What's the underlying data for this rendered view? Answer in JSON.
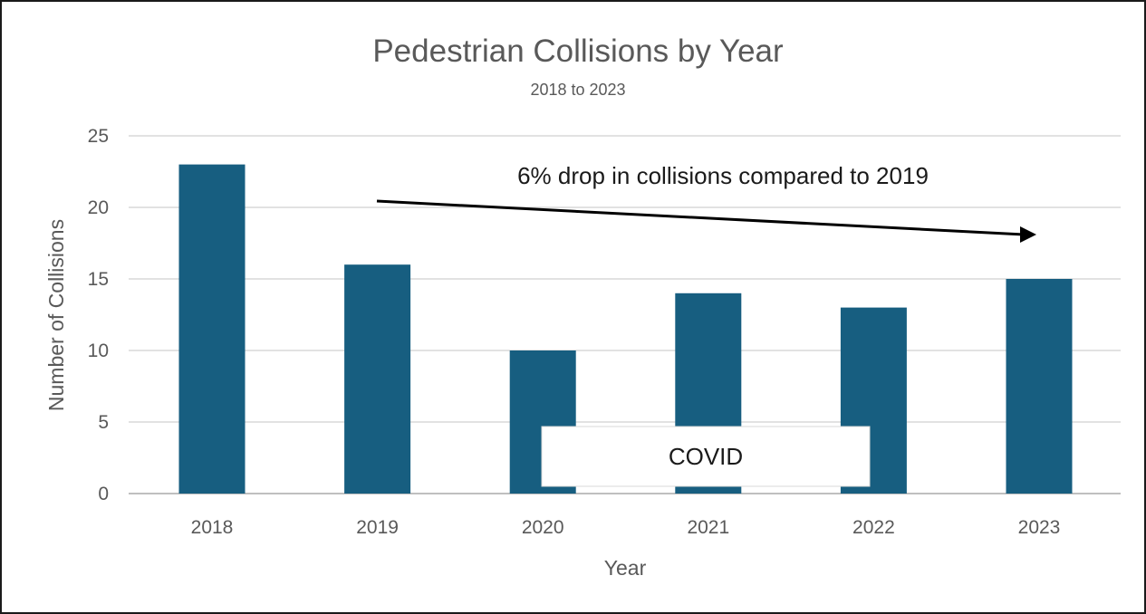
{
  "chart_data": {
    "type": "bar",
    "title": "Pedestrian Collisions by Year",
    "subtitle": "2018 to 2023",
    "xlabel": "Year",
    "ylabel": "Number of Collisions",
    "categories": [
      "2018",
      "2019",
      "2020",
      "2021",
      "2022",
      "2023"
    ],
    "values": [
      23,
      16,
      10,
      14,
      13,
      15
    ],
    "ylim": [
      0,
      25
    ],
    "yticks": [
      0,
      5,
      10,
      15,
      20,
      25
    ],
    "grid": true,
    "legend": "none",
    "bar_color": "#175e80",
    "annotations": {
      "trend_text": "6% drop in collisions compared to 2019",
      "covid_label": "COVID"
    }
  }
}
